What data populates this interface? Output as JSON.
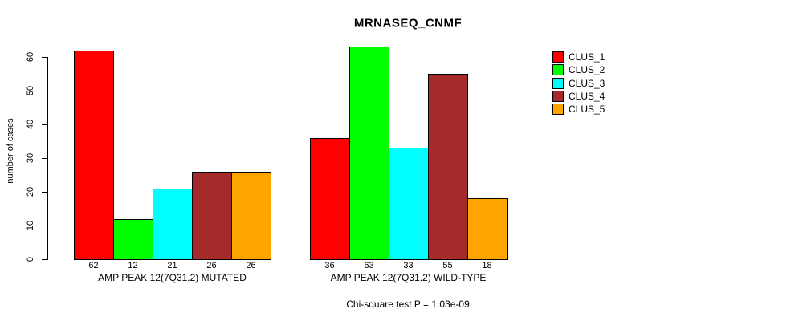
{
  "chart_data": {
    "type": "bar",
    "title": "MRNASEQ_CNMF",
    "ylabel": "number of cases",
    "xlabel": "",
    "ylim": [
      0,
      60
    ],
    "yticks": [
      0,
      10,
      20,
      30,
      40,
      50,
      60
    ],
    "grid": false,
    "legend_position": "right",
    "annotation": "Chi-square test P = 1.03e-09",
    "categories": [
      "AMP PEAK 12(7Q31.2) MUTATED",
      "AMP PEAK 12(7Q31.2) WILD-TYPE"
    ],
    "series": [
      {
        "name": "CLUS_1",
        "color": "#FF0000",
        "values": [
          62,
          36
        ]
      },
      {
        "name": "CLUS_2",
        "color": "#00FF00",
        "values": [
          12,
          63
        ]
      },
      {
        "name": "CLUS_3",
        "color": "#00FFFF",
        "values": [
          21,
          33
        ]
      },
      {
        "name": "CLUS_4",
        "color": "#A52A2A",
        "values": [
          26,
          55
        ]
      },
      {
        "name": "CLUS_5",
        "color": "#FFA500",
        "values": [
          26,
          18
        ]
      }
    ],
    "bar_value_labels_shown": true,
    "axis_color": "#000000",
    "background_color": "#FFFFFF"
  }
}
